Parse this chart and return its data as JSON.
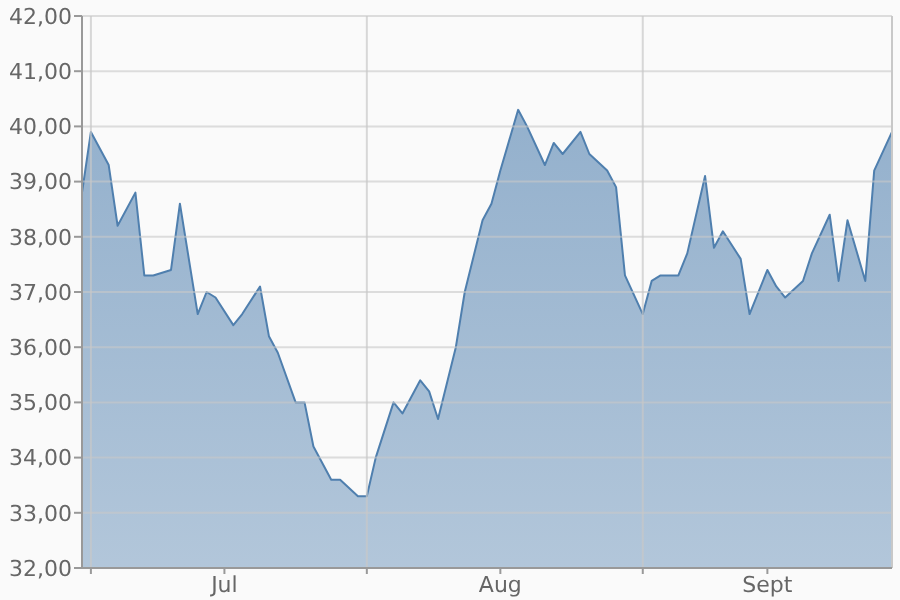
{
  "chart_data": {
    "type": "area",
    "x": [
      "--06-30",
      "--07-01",
      "--07-03",
      "--07-04",
      "--07-06",
      "--07-07",
      "--07-08",
      "--07-10",
      "--07-11",
      "--07-13",
      "--07-14",
      "--07-15",
      "--07-17",
      "--07-18",
      "--07-20",
      "--07-21",
      "--07-22",
      "--07-24",
      "--07-25",
      "--07-26",
      "--07-28",
      "--07-29",
      "--07-31",
      "--08-01",
      "--08-02",
      "--08-04",
      "--08-05",
      "--08-07",
      "--08-08",
      "--08-09",
      "--08-11",
      "--08-12",
      "--08-14",
      "--08-15",
      "--08-16",
      "--08-18",
      "--08-19",
      "--08-21",
      "--08-22",
      "--08-23",
      "--08-25",
      "--08-26",
      "--08-28",
      "--08-29",
      "--08-30",
      "--09-01",
      "--09-02",
      "--09-03",
      "--09-05",
      "--09-06",
      "--09-08",
      "--09-09",
      "--09-10",
      "--09-12",
      "--09-13",
      "--09-15",
      "--09-16",
      "--09-17",
      "--09-19",
      "--09-20",
      "--09-22",
      "--09-23",
      "--09-24",
      "--09-26",
      "--09-27",
      "--09-29"
    ],
    "series": [
      {
        "color": "#4f7fae",
        "values": [
          38.8,
          39.9,
          39.3,
          38.2,
          38.8,
          37.3,
          37.3,
          37.4,
          38.6,
          36.6,
          37.0,
          36.9,
          36.4,
          36.6,
          37.1,
          36.2,
          35.9,
          35.0,
          35.0,
          34.2,
          33.6,
          33.6,
          33.3,
          33.3,
          34.0,
          35.0,
          34.8,
          35.4,
          35.2,
          34.7,
          36.0,
          37.0,
          38.3,
          38.6,
          39.2,
          40.3,
          40.0,
          39.3,
          39.7,
          39.5,
          39.9,
          39.5,
          39.2,
          38.9,
          37.3,
          36.6,
          37.2,
          37.3,
          37.3,
          37.7,
          39.1,
          37.8,
          38.1,
          37.6,
          36.6,
          37.4,
          37.1,
          36.9,
          37.2,
          37.7,
          38.4,
          37.2,
          38.3,
          37.2,
          39.2,
          39.9
        ]
      }
    ],
    "xlim": [
      "--06-30",
      "--09-29"
    ],
    "xticks": [
      {
        "value": "--07-01",
        "label": null
      },
      {
        "value": "--07-16",
        "label": "Jul"
      },
      {
        "value": "--08-01",
        "label": null
      },
      {
        "value": "--08-16",
        "label": "Aug"
      },
      {
        "value": "--09-01",
        "label": null
      },
      {
        "value": "--09-15",
        "label": "Sept"
      }
    ],
    "ylim": [
      32,
      42
    ],
    "yticks": [
      {
        "value": 32,
        "label": "32,00"
      },
      {
        "value": 33,
        "label": "33,00"
      },
      {
        "value": 34,
        "label": "34,00"
      },
      {
        "value": 35,
        "label": "35,00"
      },
      {
        "value": 36,
        "label": "36,00"
      },
      {
        "value": 37,
        "label": "37,00"
      },
      {
        "value": 38,
        "label": "38,00"
      },
      {
        "value": 39,
        "label": "39,00"
      },
      {
        "value": 40,
        "label": "40,00"
      },
      {
        "value": 41,
        "label": "41,00"
      },
      {
        "value": 42,
        "label": "42,00"
      }
    ],
    "grid": true
  }
}
